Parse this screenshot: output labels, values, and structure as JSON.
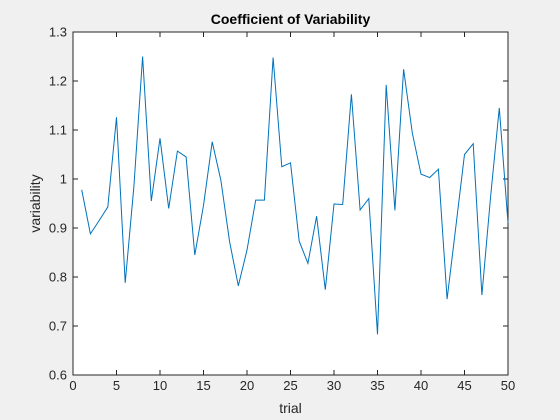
{
  "chart_data": {
    "type": "line",
    "title": "Coefficient of Variability",
    "xlabel": "trial",
    "ylabel": "variability",
    "xlim": [
      0,
      50
    ],
    "ylim": [
      0.6,
      1.3
    ],
    "x_ticks": [
      "0",
      "5",
      "10",
      "15",
      "20",
      "25",
      "30",
      "35",
      "40",
      "45",
      "50"
    ],
    "y_ticks": [
      "0.6",
      "0.7",
      "0.8",
      "0.9",
      "1",
      "1.1",
      "1.2",
      "1.3"
    ],
    "grid": false,
    "legend": "none",
    "series": [
      {
        "color": "#0072bd",
        "x": [
          1,
          2,
          3,
          4,
          5,
          6,
          7,
          8,
          9,
          10,
          11,
          12,
          13,
          14,
          15,
          16,
          17,
          18,
          19,
          20,
          21,
          22,
          23,
          24,
          25,
          26,
          27,
          28,
          29,
          30,
          31,
          32,
          33,
          34,
          35,
          36,
          37,
          38,
          39,
          40,
          41,
          42,
          43,
          44,
          45,
          46,
          47,
          48,
          49,
          50
        ],
        "y": [
          0.978,
          0.888,
          0.915,
          0.943,
          1.126,
          0.788,
          0.985,
          1.25,
          0.955,
          1.083,
          0.94,
          1.057,
          1.045,
          0.845,
          0.946,
          1.076,
          0.997,
          0.872,
          0.782,
          0.855,
          0.957,
          0.957,
          1.248,
          1.025,
          1.033,
          0.873,
          0.828,
          0.924,
          0.774,
          0.949,
          0.948,
          1.173,
          0.937,
          0.96,
          0.683,
          1.192,
          0.936,
          1.224,
          1.094,
          1.01,
          1.003,
          1.02,
          0.755,
          0.902,
          1.05,
          1.072,
          0.763,
          0.964,
          1.145,
          0.91
        ]
      }
    ]
  }
}
